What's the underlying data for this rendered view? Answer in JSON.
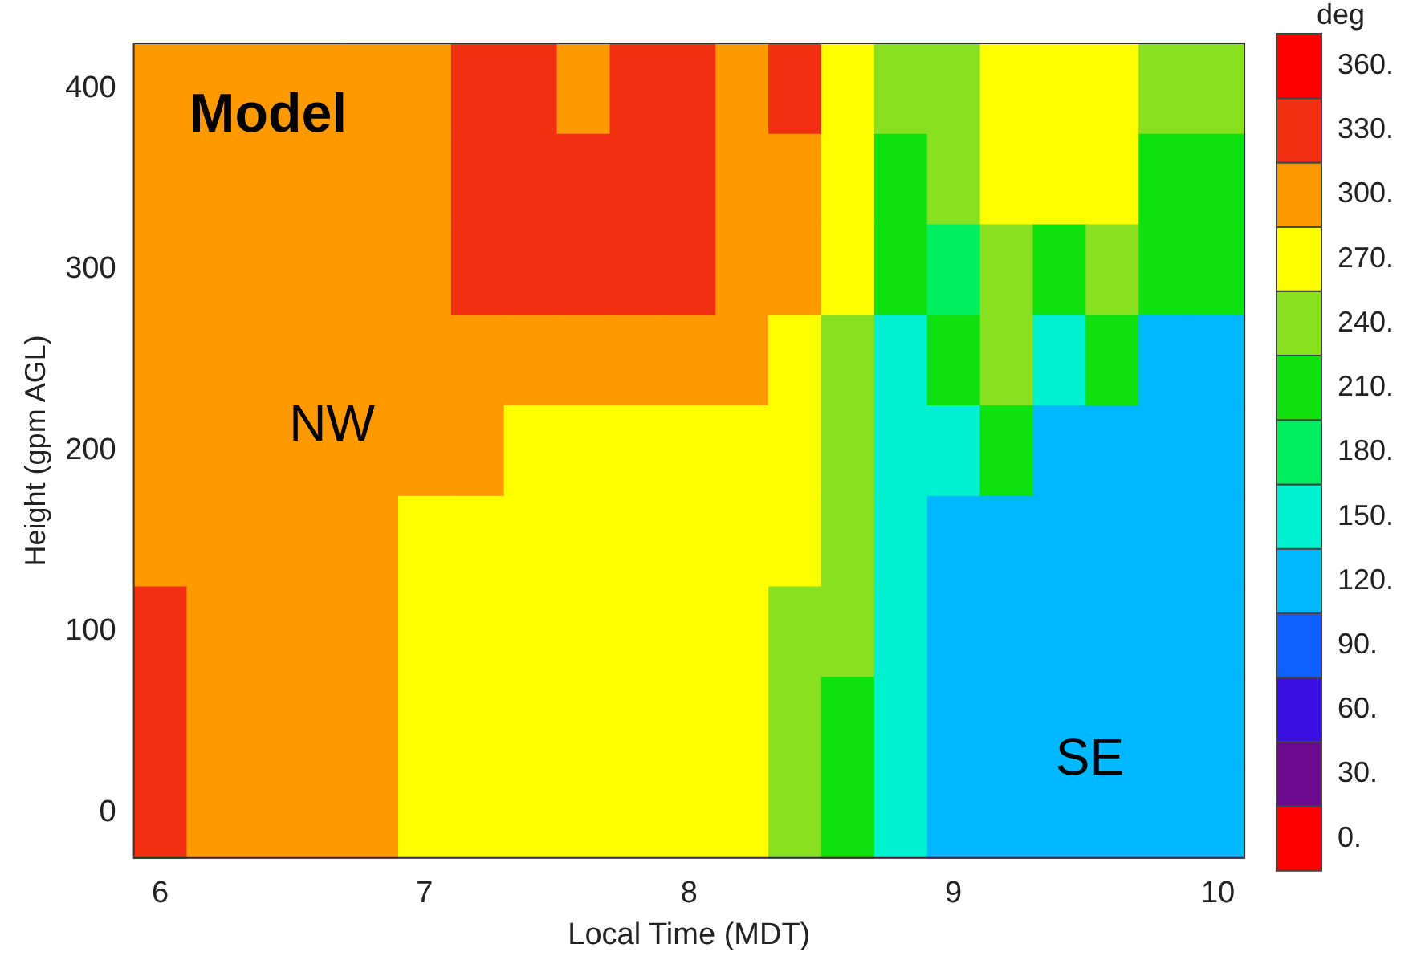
{
  "chart_data": {
    "type": "heatmap",
    "xlabel": "Local Time (MDT)",
    "ylabel": "Height (gpm AGL)",
    "clabel": "deg",
    "categories": [
      "6",
      null,
      null,
      null,
      null,
      "7",
      null,
      null,
      null,
      null,
      "8",
      null,
      null,
      null,
      null,
      "9",
      null,
      null,
      null,
      null,
      "10"
    ],
    "y_categories": [
      "400",
      null,
      "300",
      null,
      "200",
      null,
      "100",
      null,
      "0"
    ],
    "clim": [
      -15,
      375
    ],
    "cticks": [
      {
        "value": 0,
        "label": "0."
      },
      {
        "value": 30,
        "label": "30."
      },
      {
        "value": 60,
        "label": "60."
      },
      {
        "value": 90,
        "label": "90."
      },
      {
        "value": 120,
        "label": "120."
      },
      {
        "value": 150,
        "label": "150."
      },
      {
        "value": 180,
        "label": "180."
      },
      {
        "value": 210,
        "label": "210."
      },
      {
        "value": 240,
        "label": "240."
      },
      {
        "value": 270,
        "label": "270."
      },
      {
        "value": 300,
        "label": "300."
      },
      {
        "value": 330,
        "label": "330."
      },
      {
        "value": 360,
        "label": "360."
      }
    ],
    "cells": [
      [
        300,
        300,
        300,
        300,
        300,
        300,
        330,
        330,
        300,
        330,
        330,
        300,
        330,
        270,
        240,
        240,
        270,
        270,
        270,
        240,
        240
      ],
      [
        300,
        300,
        300,
        300,
        300,
        300,
        330,
        330,
        330,
        330,
        330,
        300,
        300,
        270,
        210,
        240,
        270,
        270,
        270,
        210,
        210
      ],
      [
        300,
        300,
        300,
        300,
        300,
        300,
        330,
        330,
        330,
        330,
        330,
        300,
        300,
        270,
        210,
        180,
        240,
        210,
        240,
        210,
        210
      ],
      [
        300,
        300,
        300,
        300,
        300,
        300,
        300,
        300,
        300,
        300,
        300,
        300,
        270,
        240,
        150,
        210,
        240,
        150,
        210,
        120,
        120
      ],
      [
        300,
        300,
        300,
        300,
        300,
        300,
        300,
        270,
        270,
        270,
        270,
        270,
        270,
        240,
        150,
        150,
        210,
        120,
        120,
        120,
        120
      ],
      [
        300,
        300,
        300,
        300,
        300,
        270,
        270,
        270,
        270,
        270,
        270,
        270,
        270,
        240,
        150,
        120,
        120,
        120,
        120,
        120,
        120
      ],
      [
        330,
        300,
        300,
        300,
        300,
        270,
        270,
        270,
        270,
        270,
        270,
        270,
        240,
        240,
        150,
        120,
        120,
        120,
        120,
        120,
        120
      ],
      [
        330,
        300,
        300,
        300,
        300,
        270,
        270,
        270,
        270,
        270,
        270,
        270,
        240,
        210,
        150,
        120,
        120,
        120,
        120,
        120,
        120
      ],
      [
        330,
        300,
        300,
        300,
        300,
        270,
        270,
        270,
        270,
        270,
        270,
        270,
        240,
        210,
        150,
        120,
        120,
        120,
        120,
        120,
        120
      ]
    ],
    "annotations": [
      "Model",
      "NW",
      "SE"
    ]
  }
}
